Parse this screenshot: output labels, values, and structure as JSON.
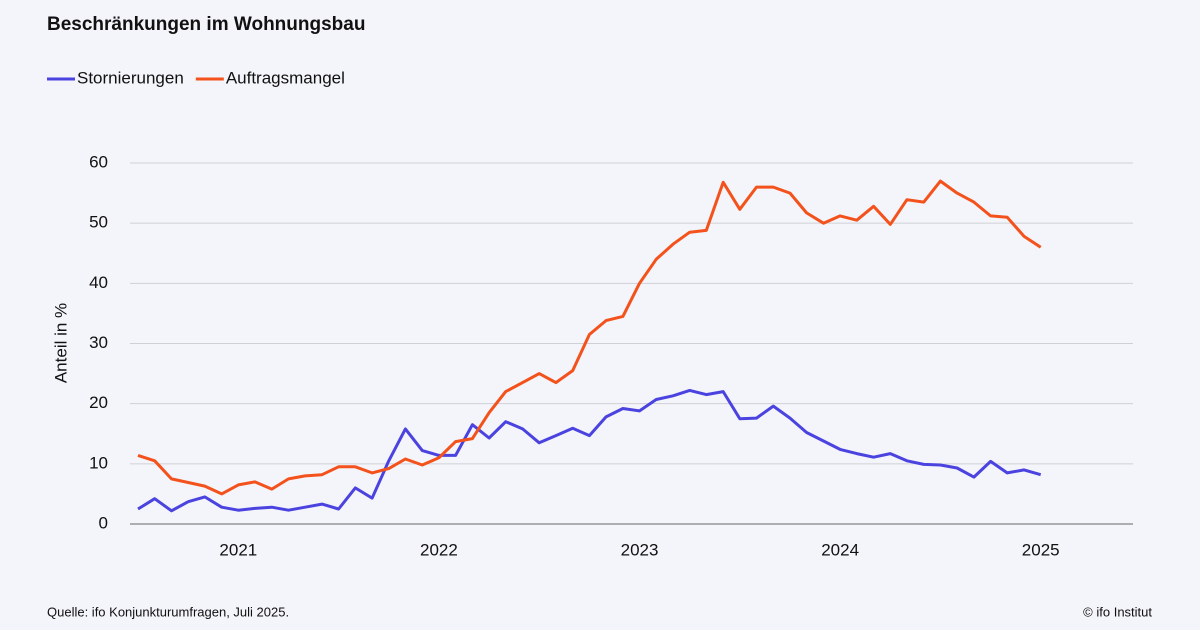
{
  "chart_data": {
    "type": "line",
    "title": "Beschränkungen im Wohnungsbau",
    "y_label": "Anteil in %",
    "source": "Quelle: ifo Konjunkturumfragen,  Juli 2025.",
    "credit": "© ifo Institut",
    "x": [
      2021,
      2021.083,
      2021.167,
      2021.25,
      2021.333,
      2021.417,
      2021.5,
      2021.583,
      2021.667,
      2021.75,
      2021.833,
      2021.917,
      2022,
      2022.083,
      2022.167,
      2022.25,
      2022.333,
      2022.417,
      2022.5,
      2022.583,
      2022.667,
      2022.75,
      2022.833,
      2022.917,
      2023,
      2023.083,
      2023.167,
      2023.25,
      2023.333,
      2023.417,
      2023.5,
      2023.583,
      2023.667,
      2023.75,
      2023.833,
      2023.917,
      2024,
      2024.083,
      2024.167,
      2024.25,
      2024.333,
      2024.417,
      2024.5,
      2024.583,
      2024.667,
      2024.75,
      2024.833,
      2024.917,
      2025,
      2025.083,
      2025.167,
      2025.25,
      2025.333,
      2025.417,
      2025.5
    ],
    "series": [
      {
        "name": "Stornierungen",
        "color": "#4b43e0",
        "values": [
          2.5,
          4.2,
          2.2,
          3.7,
          4.5,
          2.8,
          2.3,
          2.6,
          2.8,
          2.3,
          2.8,
          3.3,
          2.5,
          6,
          4.3,
          10.5,
          15.8,
          12.2,
          11.4,
          11.4,
          16.5,
          14.3,
          17,
          15.8,
          13.5,
          14.7,
          15.9,
          14.7,
          17.8,
          19.2,
          18.8,
          20.7,
          21.3,
          22.2,
          21.5,
          22,
          17.5,
          17.6,
          19.6,
          17.6,
          15.2,
          13.8,
          12.4,
          11.7,
          11.1,
          11.7,
          10.5,
          9.9,
          9.8,
          9.3,
          7.8,
          10.4,
          8.5,
          9,
          8.2
        ]
      },
      {
        "name": "Auftragsmangel",
        "color": "#f4521c",
        "values": [
          11.4,
          10.5,
          7.5,
          6.9,
          6.3,
          5,
          6.5,
          7,
          5.8,
          7.5,
          8,
          8.2,
          9.5,
          9.5,
          8.5,
          9.2,
          10.8,
          9.8,
          11,
          13.7,
          14.2,
          18.5,
          22,
          23.5,
          25,
          23.5,
          25.5,
          31.5,
          33.8,
          34.5,
          40,
          44,
          46.5,
          48.5,
          48.8,
          56.8,
          52.3,
          56,
          56,
          55,
          51.7,
          50,
          51.2,
          50.5,
          52.8,
          49.8,
          53.9,
          53.5,
          57,
          55,
          53.5,
          51.2,
          51,
          47.8,
          46
        ]
      }
    ],
    "xlim": [
      2020.96,
      2025.96
    ],
    "xticks": [
      {
        "value": 2021.5,
        "label": "2021"
      },
      {
        "value": 2022.5,
        "label": "2022"
      },
      {
        "value": 2023.5,
        "label": "2023"
      },
      {
        "value": 2024.5,
        "label": "2024"
      },
      {
        "value": 2025.5,
        "label": "2025"
      }
    ],
    "ylim": [
      0,
      60
    ],
    "yticks": [
      0,
      10,
      20,
      30,
      40,
      50,
      60
    ],
    "grid": true
  }
}
